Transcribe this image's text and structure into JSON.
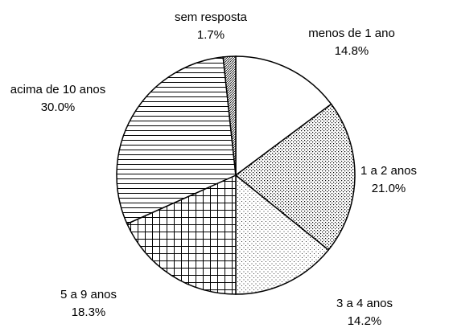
{
  "chart_data": {
    "type": "pie",
    "categories": [
      "menos de 1 ano",
      "1 a 2 anos",
      "3 a 4 anos",
      "5 a 9 anos",
      "acima de 10 anos",
      "sem resposta"
    ],
    "values": [
      14.8,
      21.0,
      14.2,
      18.3,
      30.0,
      1.7
    ],
    "value_labels": [
      "14.8%",
      "21.0%",
      "14.2%",
      "18.3%",
      "30.0%",
      "1.7%"
    ]
  }
}
